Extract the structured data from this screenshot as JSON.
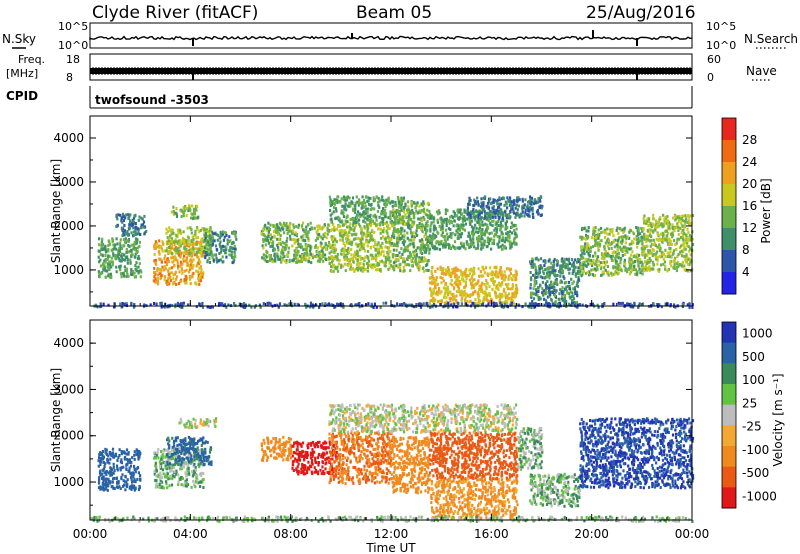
{
  "header": {
    "station": "Clyde River (fitACF)",
    "beam": "Beam 05",
    "date": "25/Aug/2016"
  },
  "top_panels": {
    "nsky_label": "N.Sky",
    "nsky_ticks": [
      "10^5",
      "10^0"
    ],
    "nsearch_ticks": [
      "10^5",
      "10^0"
    ],
    "nsearch_label": "N.Search",
    "freq_label_1": "Freq.",
    "freq_label_2": "[MHz]",
    "freq_ticks": [
      "18",
      "8"
    ],
    "nave_ticks": [
      "60",
      "0"
    ],
    "nave_label": "Nave",
    "cpid_label": "CPID",
    "cpid_value": "twofsound -3503"
  },
  "colors": {
    "power_scale": [
      "#2424e6",
      "#2e56a8",
      "#3f8f6a",
      "#6cb04a",
      "#c8c81e",
      "#f0a020",
      "#ef6a12",
      "#e6281e"
    ],
    "velocity_scale": [
      "#e01818",
      "#ea5a14",
      "#f08a1e",
      "#f2a832",
      "#bdbdbd",
      "#62c242",
      "#3a8a5a",
      "#2a62a6",
      "#2234b4"
    ]
  },
  "chart_data": [
    {
      "type": "heatmap",
      "title": "",
      "xlabel": "",
      "ylabel": "Slant Range [km]",
      "colorbar_label": "Power [dB]",
      "colorbar_ticks": [
        "28",
        "24",
        "20",
        "16",
        "12",
        "8",
        "4"
      ],
      "x_ticks": [
        "00:00",
        "04:00",
        "08:00",
        "12:00",
        "16:00",
        "20:00",
        "00:00"
      ],
      "y_ticks": [
        "4000",
        "3000",
        "2000",
        "1000"
      ],
      "xlim": [
        0,
        24
      ],
      "ylim": [
        180,
        4500
      ],
      "regions": [
        {
          "t0": 0.3,
          "t1": 2.0,
          "r0": 850,
          "r1": 1750,
          "value": 14
        },
        {
          "t0": 1.0,
          "t1": 2.2,
          "r0": 1800,
          "r1": 2300,
          "value": 10
        },
        {
          "t0": 2.5,
          "t1": 4.5,
          "r0": 700,
          "r1": 1700,
          "value": 24
        },
        {
          "t0": 3.0,
          "t1": 4.8,
          "r0": 1400,
          "r1": 2000,
          "value": 18
        },
        {
          "t0": 3.2,
          "t1": 4.3,
          "r0": 2200,
          "r1": 2500,
          "value": 16
        },
        {
          "t0": 4.5,
          "t1": 5.8,
          "r0": 1200,
          "r1": 1900,
          "value": 12
        },
        {
          "t0": 6.8,
          "t1": 9.5,
          "r0": 1200,
          "r1": 2100,
          "value": 16
        },
        {
          "t0": 9.5,
          "t1": 12.0,
          "r0": 1000,
          "r1": 2100,
          "value": 18
        },
        {
          "t0": 9.5,
          "t1": 12.5,
          "r0": 2100,
          "r1": 2700,
          "value": 14
        },
        {
          "t0": 12.0,
          "t1": 13.5,
          "r0": 1000,
          "r1": 2600,
          "value": 16
        },
        {
          "t0": 13.5,
          "t1": 17.0,
          "r0": 250,
          "r1": 1100,
          "value": 22
        },
        {
          "t0": 13.5,
          "t1": 17.0,
          "r0": 1500,
          "r1": 2400,
          "value": 14
        },
        {
          "t0": 15.0,
          "t1": 18.0,
          "r0": 2200,
          "r1": 2700,
          "value": 10
        },
        {
          "t0": 17.5,
          "t1": 19.5,
          "r0": 200,
          "r1": 1300,
          "value": 12
        },
        {
          "t0": 19.5,
          "t1": 22.0,
          "r0": 900,
          "r1": 2000,
          "value": 16
        },
        {
          "t0": 22.0,
          "t1": 24.0,
          "r0": 1000,
          "r1": 2300,
          "value": 18
        },
        {
          "t0": 0.0,
          "t1": 24.0,
          "r0": 180,
          "r1": 280,
          "value": 8
        }
      ]
    },
    {
      "type": "heatmap",
      "title": "",
      "xlabel": "Time UT",
      "ylabel": "Slant Range [km]",
      "colorbar_label": "Velocity [m s⁻¹]",
      "colorbar_ticks": [
        "1000",
        "500",
        "100",
        "25",
        "-25",
        "-100",
        "-500",
        "-1000"
      ],
      "x_ticks": [
        "00:00",
        "04:00",
        "08:00",
        "12:00",
        "16:00",
        "20:00",
        "00:00"
      ],
      "y_ticks": [
        "4000",
        "3000",
        "2000",
        "1000"
      ],
      "xlim": [
        0,
        24
      ],
      "ylim": [
        180,
        4500
      ],
      "regions": [
        {
          "t0": 0.3,
          "t1": 2.0,
          "r0": 850,
          "r1": 1750,
          "value": 400
        },
        {
          "t0": 2.5,
          "t1": 4.5,
          "r0": 900,
          "r1": 1750,
          "value": 60
        },
        {
          "t0": 3.0,
          "t1": 4.8,
          "r0": 1400,
          "r1": 2000,
          "value": 300
        },
        {
          "t0": 3.5,
          "t1": 5.0,
          "r0": 2200,
          "r1": 2400,
          "value": 0
        },
        {
          "t0": 6.8,
          "t1": 8.0,
          "r0": 1500,
          "r1": 2000,
          "value": -200
        },
        {
          "t0": 8.0,
          "t1": 9.8,
          "r0": 1200,
          "r1": 1900,
          "value": -800
        },
        {
          "t0": 9.5,
          "t1": 12.0,
          "r0": 1000,
          "r1": 2100,
          "value": -300
        },
        {
          "t0": 9.5,
          "t1": 17.0,
          "r0": 2100,
          "r1": 2700,
          "value": 0
        },
        {
          "t0": 12.0,
          "t1": 13.5,
          "r0": 800,
          "r1": 2000,
          "value": -200
        },
        {
          "t0": 13.5,
          "t1": 17.0,
          "r0": 250,
          "r1": 1100,
          "value": -150
        },
        {
          "t0": 13.5,
          "t1": 17.0,
          "r0": 1100,
          "r1": 2100,
          "value": -400
        },
        {
          "t0": 17.0,
          "t1": 18.0,
          "r0": 1300,
          "r1": 2200,
          "value": 60
        },
        {
          "t0": 17.5,
          "t1": 19.5,
          "r0": 500,
          "r1": 1200,
          "value": 60
        },
        {
          "t0": 19.5,
          "t1": 24.0,
          "r0": 900,
          "r1": 2400,
          "value": 700
        },
        {
          "t0": 0.0,
          "t1": 24.0,
          "r0": 180,
          "r1": 280,
          "value": 40
        }
      ]
    }
  ]
}
